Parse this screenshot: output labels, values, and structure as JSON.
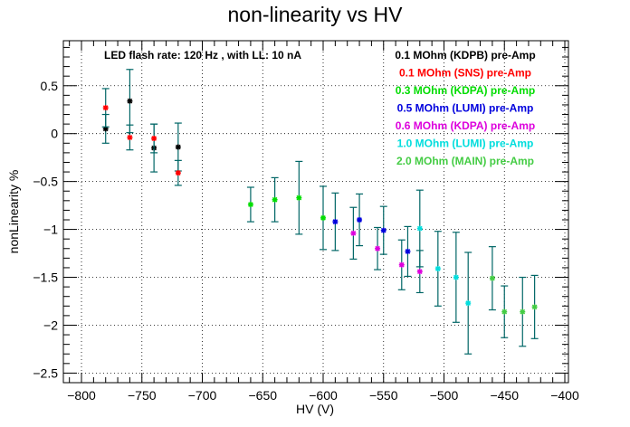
{
  "chart_data": {
    "type": "scatter",
    "title": "non-linearity vs HV",
    "xlabel": "HV (V)",
    "ylabel": "nonLinearity %",
    "xlim": [
      -815,
      -397
    ],
    "ylim": [
      -2.6,
      0.97
    ],
    "x_ticks": [
      -800,
      -750,
      -700,
      -650,
      -600,
      -550,
      -500,
      -450,
      -400
    ],
    "y_ticks": [
      0.5,
      0,
      -0.5,
      -1,
      -1.5,
      -2,
      -2.5
    ],
    "x_tick_labels": [
      "−800",
      "−750",
      "−700",
      "−650",
      "−600",
      "−550",
      "−500",
      "−450",
      "−400"
    ],
    "y_tick_labels": [
      "0.5",
      "0",
      "−0.5",
      "−1",
      "−1.5",
      "−2",
      "−2.5"
    ],
    "grid": true,
    "annotation": "LED flash rate: 120 Hz , with LL: 10 nA",
    "error_bar_color": "#006666",
    "series": [
      {
        "name": "0.1 MOhm (KDPB) pre-Amp",
        "color": "#000000",
        "points": [
          {
            "x": -780,
            "y": 0.05,
            "err": 0.15
          },
          {
            "x": -760,
            "y": 0.34,
            "err": 0.33
          },
          {
            "x": -740,
            "y": -0.15,
            "err": 0.25
          },
          {
            "x": -720,
            "y": -0.14,
            "err": 0.25
          }
        ]
      },
      {
        "name": "0.1 MOhm (SNS) pre-Amp",
        "color": "#ff0000",
        "points": [
          {
            "x": -780,
            "y": 0.27,
            "err": 0.2
          },
          {
            "x": -760,
            "y": -0.04,
            "err": 0.13
          },
          {
            "x": -740,
            "y": -0.05,
            "err": 0.15
          },
          {
            "x": -720,
            "y": -0.41,
            "err": 0.13
          }
        ]
      },
      {
        "name": "0.3 MOhm (KDPA) pre-Amp",
        "color": "#00dd00",
        "points": [
          {
            "x": -660,
            "y": -0.74,
            "err": 0.18
          },
          {
            "x": -640,
            "y": -0.69,
            "err": 0.23
          },
          {
            "x": -620,
            "y": -0.67,
            "err": 0.38
          },
          {
            "x": -600,
            "y": -0.88,
            "err": 0.33
          }
        ]
      },
      {
        "name": "0.5 MOhm (LUMI) pre-Amp",
        "color": "#0000dd",
        "points": [
          {
            "x": -590,
            "y": -0.92,
            "err": 0.3
          },
          {
            "x": -570,
            "y": -0.9,
            "err": 0.27
          },
          {
            "x": -550,
            "y": -1.01,
            "err": 0.25
          },
          {
            "x": -530,
            "y": -1.23,
            "err": 0.26
          }
        ]
      },
      {
        "name": "0.6 MOhm (KDPA) pre-Amp",
        "color": "#dd00dd",
        "points": [
          {
            "x": -575,
            "y": -1.04,
            "err": 0.27
          },
          {
            "x": -555,
            "y": -1.2,
            "err": 0.22
          },
          {
            "x": -535,
            "y": -1.37,
            "err": 0.26
          },
          {
            "x": -520,
            "y": -1.44,
            "err": 0.22
          }
        ]
      },
      {
        "name": "1.0 MOhm (LUMI) pre-Amp",
        "color": "#00dddd",
        "points": [
          {
            "x": -520,
            "y": -0.99,
            "err": 0.4
          },
          {
            "x": -505,
            "y": -1.41,
            "err": 0.39
          },
          {
            "x": -490,
            "y": -1.5,
            "err": 0.47
          },
          {
            "x": -480,
            "y": -1.77,
            "err": 0.53
          }
        ]
      },
      {
        "name": "2.0 MOhm (MAIN) pre-Amp",
        "color": "#44cc44",
        "points": [
          {
            "x": -460,
            "y": -1.51,
            "err": 0.33
          },
          {
            "x": -450,
            "y": -1.86,
            "err": 0.27
          },
          {
            "x": -435,
            "y": -1.86,
            "err": 0.36
          },
          {
            "x": -425,
            "y": -1.81,
            "err": 0.33
          }
        ]
      }
    ]
  }
}
